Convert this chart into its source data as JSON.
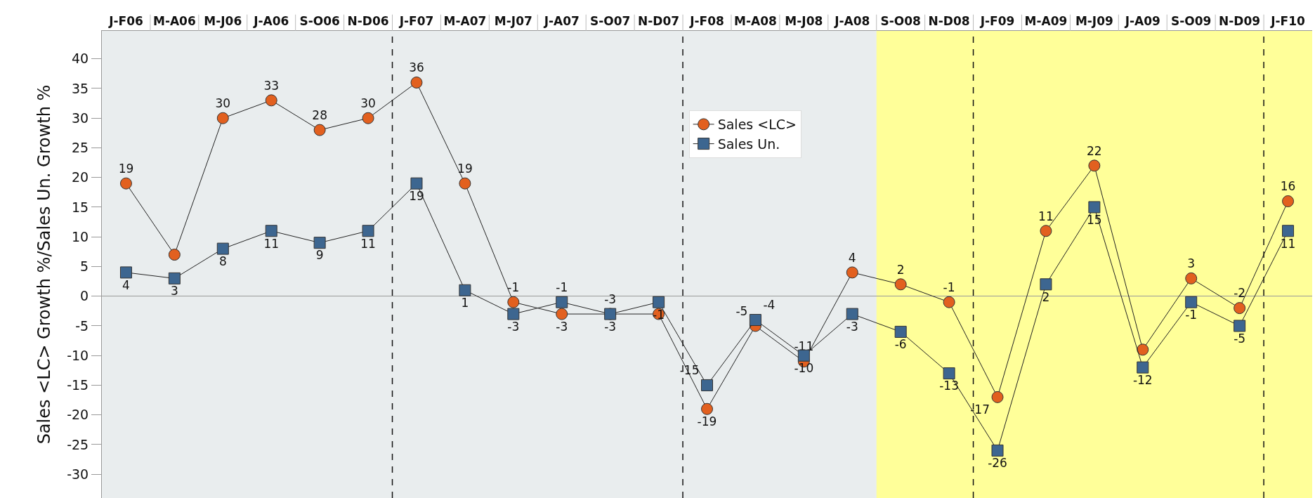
{
  "chart_data": {
    "type": "line",
    "ylabel": "Sales <LC> Growth %/Sales Un. Growth %",
    "categories": [
      "J-F06",
      "M-A06",
      "M-J06",
      "J-A06",
      "S-O06",
      "N-D06",
      "J-F07",
      "M-A07",
      "M-J07",
      "J-A07",
      "S-O07",
      "N-D07",
      "J-F08",
      "M-A08",
      "M-J08",
      "J-A08",
      "S-O08",
      "N-D08",
      "J-F09",
      "M-A09",
      "M-J09",
      "J-A09",
      "S-O09",
      "N-D09",
      "J-F10"
    ],
    "series": [
      {
        "name": "Sales <LC>",
        "color": "#e2601f",
        "marker": "circle",
        "values": [
          19,
          7,
          30,
          33,
          28,
          30,
          36,
          19,
          -1,
          -3,
          -3,
          -3,
          -19,
          -5,
          -11,
          4,
          2,
          -1,
          -17,
          11,
          22,
          -9,
          3,
          -2,
          16
        ],
        "value_labels": [
          "19",
          null,
          "30",
          "33",
          "28",
          "30",
          "36",
          "19",
          "-1",
          "-3",
          "-3",
          null,
          "-19",
          "-5",
          "-11",
          "4",
          "2",
          "-1",
          "-17",
          "11",
          "22",
          null,
          "3",
          "-2",
          "16"
        ]
      },
      {
        "name": "Sales Un.",
        "color": "#3d6690",
        "marker": "square",
        "values": [
          4,
          3,
          8,
          11,
          9,
          11,
          19,
          1,
          -3,
          -1,
          -3,
          -1,
          -15,
          -4,
          -10,
          -3,
          -6,
          -13,
          -26,
          2,
          15,
          -12,
          -1,
          -5,
          11
        ],
        "value_labels": [
          "4",
          "3",
          "8",
          "11",
          "9",
          "11",
          "19",
          "1",
          "-3",
          "-1",
          "-3",
          "-1",
          "-15",
          "-4",
          "-10",
          "-3",
          "-6",
          "-13",
          "-26",
          "2",
          "15",
          "-12",
          "-1",
          "-5",
          "11"
        ]
      }
    ],
    "ylim": [
      -34,
      44.7
    ],
    "yticks": [
      -30,
      -25,
      -20,
      -15,
      -10,
      -5,
      0,
      5,
      10,
      15,
      20,
      25,
      30,
      35,
      40
    ],
    "bands": [
      {
        "axis": "x",
        "from": "S-O08",
        "to": "J-F10",
        "color": "#ffff99"
      }
    ],
    "grid": false,
    "legend": "top",
    "line_style": "solid"
  }
}
